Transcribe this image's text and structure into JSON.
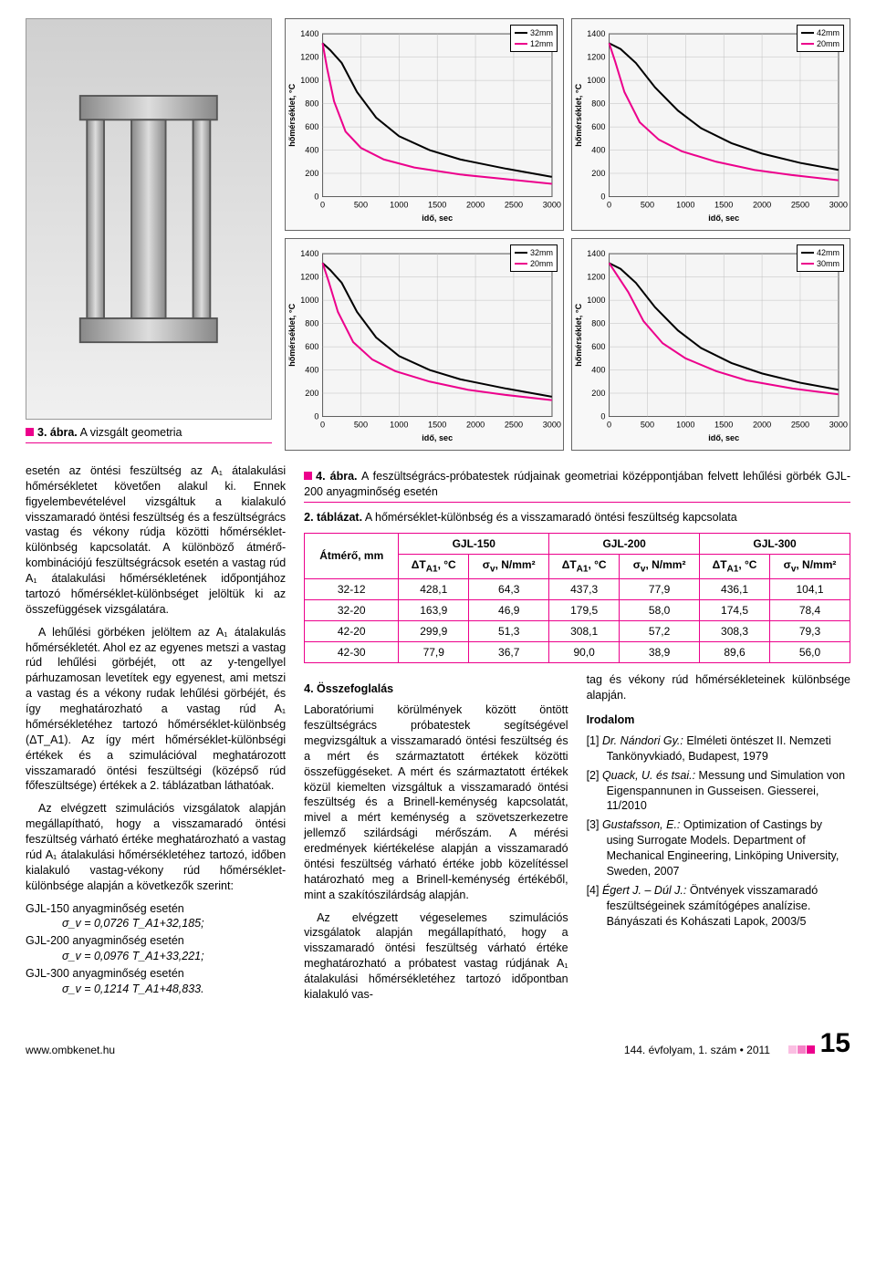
{
  "fig3": {
    "caption_label": "3. ábra.",
    "caption_text": "A vizsgált geometria"
  },
  "fig4": {
    "caption_label": "4. ábra.",
    "caption_text": "A feszültségrács-próbatestek rúdjainak geometriai középpontjában felvett lehűlési görbék GJL-200 anyagminőség esetén"
  },
  "charts": {
    "ylabel": "hőmérséklet, °C",
    "xlabel": "idő, sec",
    "xlim": [
      0,
      3000
    ],
    "ylim": [
      0,
      1400
    ],
    "xtick_step": 500,
    "ytick_step": 200,
    "background": "#f5f5f5",
    "grid_color": "#bfbfbf",
    "axis_fontsize": 9,
    "panels": [
      {
        "legend": [
          {
            "label": "32mm",
            "color": "#000000"
          },
          {
            "label": "12mm",
            "color": "#ec008c"
          }
        ],
        "series": [
          {
            "color": "#000000",
            "width": 2,
            "points": [
              [
                0,
                1320
              ],
              [
                100,
                1260
              ],
              [
                250,
                1150
              ],
              [
                450,
                900
              ],
              [
                700,
                680
              ],
              [
                1000,
                520
              ],
              [
                1400,
                400
              ],
              [
                1800,
                320
              ],
              [
                2400,
                240
              ],
              [
                3000,
                170
              ]
            ]
          },
          {
            "color": "#ec008c",
            "width": 2,
            "points": [
              [
                0,
                1320
              ],
              [
                60,
                1100
              ],
              [
                150,
                820
              ],
              [
                300,
                560
              ],
              [
                500,
                420
              ],
              [
                800,
                320
              ],
              [
                1200,
                250
              ],
              [
                1800,
                190
              ],
              [
                2400,
                150
              ],
              [
                3000,
                110
              ]
            ]
          }
        ]
      },
      {
        "legend": [
          {
            "label": "42mm",
            "color": "#000000"
          },
          {
            "label": "20mm",
            "color": "#ec008c"
          }
        ],
        "series": [
          {
            "color": "#000000",
            "width": 2,
            "points": [
              [
                0,
                1320
              ],
              [
                150,
                1270
              ],
              [
                350,
                1150
              ],
              [
                600,
                940
              ],
              [
                900,
                740
              ],
              [
                1200,
                590
              ],
              [
                1600,
                460
              ],
              [
                2000,
                370
              ],
              [
                2500,
                290
              ],
              [
                3000,
                230
              ]
            ]
          },
          {
            "color": "#ec008c",
            "width": 2,
            "points": [
              [
                0,
                1320
              ],
              [
                80,
                1160
              ],
              [
                200,
                900
              ],
              [
                400,
                640
              ],
              [
                650,
                490
              ],
              [
                950,
                390
              ],
              [
                1400,
                300
              ],
              [
                1900,
                230
              ],
              [
                2400,
                185
              ],
              [
                3000,
                140
              ]
            ]
          }
        ]
      },
      {
        "legend": [
          {
            "label": "32mm",
            "color": "#000000"
          },
          {
            "label": "20mm",
            "color": "#ec008c"
          }
        ],
        "series": [
          {
            "color": "#000000",
            "width": 2,
            "points": [
              [
                0,
                1320
              ],
              [
                100,
                1260
              ],
              [
                250,
                1150
              ],
              [
                450,
                900
              ],
              [
                700,
                680
              ],
              [
                1000,
                520
              ],
              [
                1400,
                400
              ],
              [
                1800,
                320
              ],
              [
                2400,
                240
              ],
              [
                3000,
                170
              ]
            ]
          },
          {
            "color": "#ec008c",
            "width": 2,
            "points": [
              [
                0,
                1320
              ],
              [
                80,
                1160
              ],
              [
                200,
                900
              ],
              [
                400,
                640
              ],
              [
                650,
                490
              ],
              [
                950,
                390
              ],
              [
                1400,
                300
              ],
              [
                1900,
                230
              ],
              [
                2400,
                185
              ],
              [
                3000,
                140
              ]
            ]
          }
        ]
      },
      {
        "legend": [
          {
            "label": "42mm",
            "color": "#000000"
          },
          {
            "label": "30mm",
            "color": "#ec008c"
          }
        ],
        "series": [
          {
            "color": "#000000",
            "width": 2,
            "points": [
              [
                0,
                1320
              ],
              [
                150,
                1270
              ],
              [
                350,
                1150
              ],
              [
                600,
                940
              ],
              [
                900,
                740
              ],
              [
                1200,
                590
              ],
              [
                1600,
                460
              ],
              [
                2000,
                370
              ],
              [
                2500,
                290
              ],
              [
                3000,
                230
              ]
            ]
          },
          {
            "color": "#ec008c",
            "width": 2,
            "points": [
              [
                0,
                1320
              ],
              [
                100,
                1220
              ],
              [
                250,
                1070
              ],
              [
                450,
                820
              ],
              [
                700,
                630
              ],
              [
                1000,
                500
              ],
              [
                1400,
                390
              ],
              [
                1800,
                310
              ],
              [
                2400,
                240
              ],
              [
                3000,
                190
              ]
            ]
          }
        ]
      }
    ]
  },
  "tab2": {
    "caption_label": "2. táblázat.",
    "caption_text": "A hőmérséklet-különbség és a visszamaradó öntési feszültség kapcsolata",
    "row_header": "Átmérő, mm",
    "groups": [
      "GJL-150",
      "GJL-200",
      "GJL-300"
    ],
    "sub_headers": [
      "ΔT_A1, °C",
      "σ_v, N/mm²"
    ],
    "rows": [
      [
        "32-12",
        "428,1",
        "64,3",
        "437,3",
        "77,9",
        "436,1",
        "104,1"
      ],
      [
        "32-20",
        "163,9",
        "46,9",
        "179,5",
        "58,0",
        "174,5",
        "78,4"
      ],
      [
        "42-20",
        "299,9",
        "51,3",
        "308,1",
        "57,2",
        "308,3",
        "79,3"
      ],
      [
        "42-30",
        "77,9",
        "36,7",
        "90,0",
        "38,9",
        "89,6",
        "56,0"
      ]
    ],
    "border_color": "#ec008c"
  },
  "text": {
    "col1_p1": "esetén az öntési feszültség az A₁ átalakulási hőmérsékletet követően alakul ki. Ennek figyelembevételével vizsgáltuk a kialakuló visszamaradó öntési feszültség és a feszültségrács vastag és vékony rúdja közötti hőmérséklet-különbség kapcsolatát. A különböző átmérő-kombinációjú feszültségrácsok esetén a vastag rúd A₁ átalakulási hőmérsékletének időpontjához tartozó hőmérséklet-különbséget jelöltük ki az összefüggések vizsgálatára.",
    "col1_p2": "A lehűlési görbéken jelöltem az A₁ átalakulás hőmérsékletét. Ahol ez az egyenes metszi a vastag rúd lehűlési görbéjét, ott az y-tengellyel párhuzamosan levetítek egy egyenest, ami metszi a vastag és a vékony rudak lehűlési görbéjét, és így meghatározható a vastag rúd A₁ hőmérsékletéhez tartozó hőmérséklet-különbség (ΔT_A1). Az így mért hőmérséklet-különbségi értékek és a szimulációval meghatározott visszamaradó öntési feszültségi (középső rúd főfeszültsége) értékek a 2. táblázatban láthatóak.",
    "col1_p3": "Az elvégzett szimulációs vizsgálatok alapján megállapítható, hogy a visszamaradó öntési feszültség várható értéke meghatározható a vastag rúd A₁ átalakulási hőmérsékletéhez tartozó, időben kialakuló vastag-vékony rúd hőmérséklet-különbsége alapján a következők szerint:",
    "eq1_label": "GJL-150 anyagminőség esetén",
    "eq1": "σ_v = 0,0726 T_A1+32,185;",
    "eq2_label": "GJL-200 anyagminőség esetén",
    "eq2": "σ_v = 0,0976 T_A1+33,221;",
    "eq3_label": "GJL-300 anyagminőség esetén",
    "eq3": "σ_v = 0,1214 T_A1+48,833.",
    "col2_head": "4. Összefoglalás",
    "col2_p1": "Laboratóriumi körülmények között öntött feszültségrács próbatestek segítségével megvizsgáltuk a visszamaradó öntési feszültség és a mért és származtatott értékek közötti összefüggéseket. A mért és származtatott értékek közül kiemelten vizsgáltuk a visszamaradó öntési feszültség és a Brinell-keménység kapcsolatát, mivel a mért keménység a szövetszerkezetre jellemző szilárdsági mérőszám. A mérési eredmények kiértékelése alapján a visszamaradó öntési feszültség várható értéke jobb közelítéssel határozható meg a Brinell-keménység értékéből, mint a szakítószilárdság alapján.",
    "col2_p2": "Az elvégzett végeselemes szimulációs vizsgálatok alapján megállapítható, hogy a visszamaradó öntési feszültség várható értéke meghatározható a próbatest vastag rúdjának A₁ átalakulási hőmérsékletéhez tartozó időpontban kialakuló vas-",
    "col3_p1": "tag és vékony rúd hőmérsékleteinek különbsége alapján.",
    "col3_head": "Irodalom",
    "refs": [
      "[1] Dr. Nándori Gy.: Elméleti öntészet II. Nemzeti Tankönyvkiadó, Budapest, 1979",
      "[2] Quack, U. és tsai.: Messung und Simulation von Eigenspannunen in Gusseisen. Giesserei, 11/2010",
      "[3] Gustafsson, E.: Optimization of Castings by using Surrogate Models. Department of Mechanical Engineering, Linköping University, Sweden, 2007",
      "[4] Égert J. – Dúl J.: Öntvények visszamaradó feszültségeinek számítógépes analízise. Bányászati és Kohászati Lapok, 2003/5"
    ]
  },
  "footer": {
    "left": "www.ombkenet.hu",
    "right": "144. évfolyam, 1. szám • 2011",
    "page": "15"
  },
  "accent": "#ec008c"
}
